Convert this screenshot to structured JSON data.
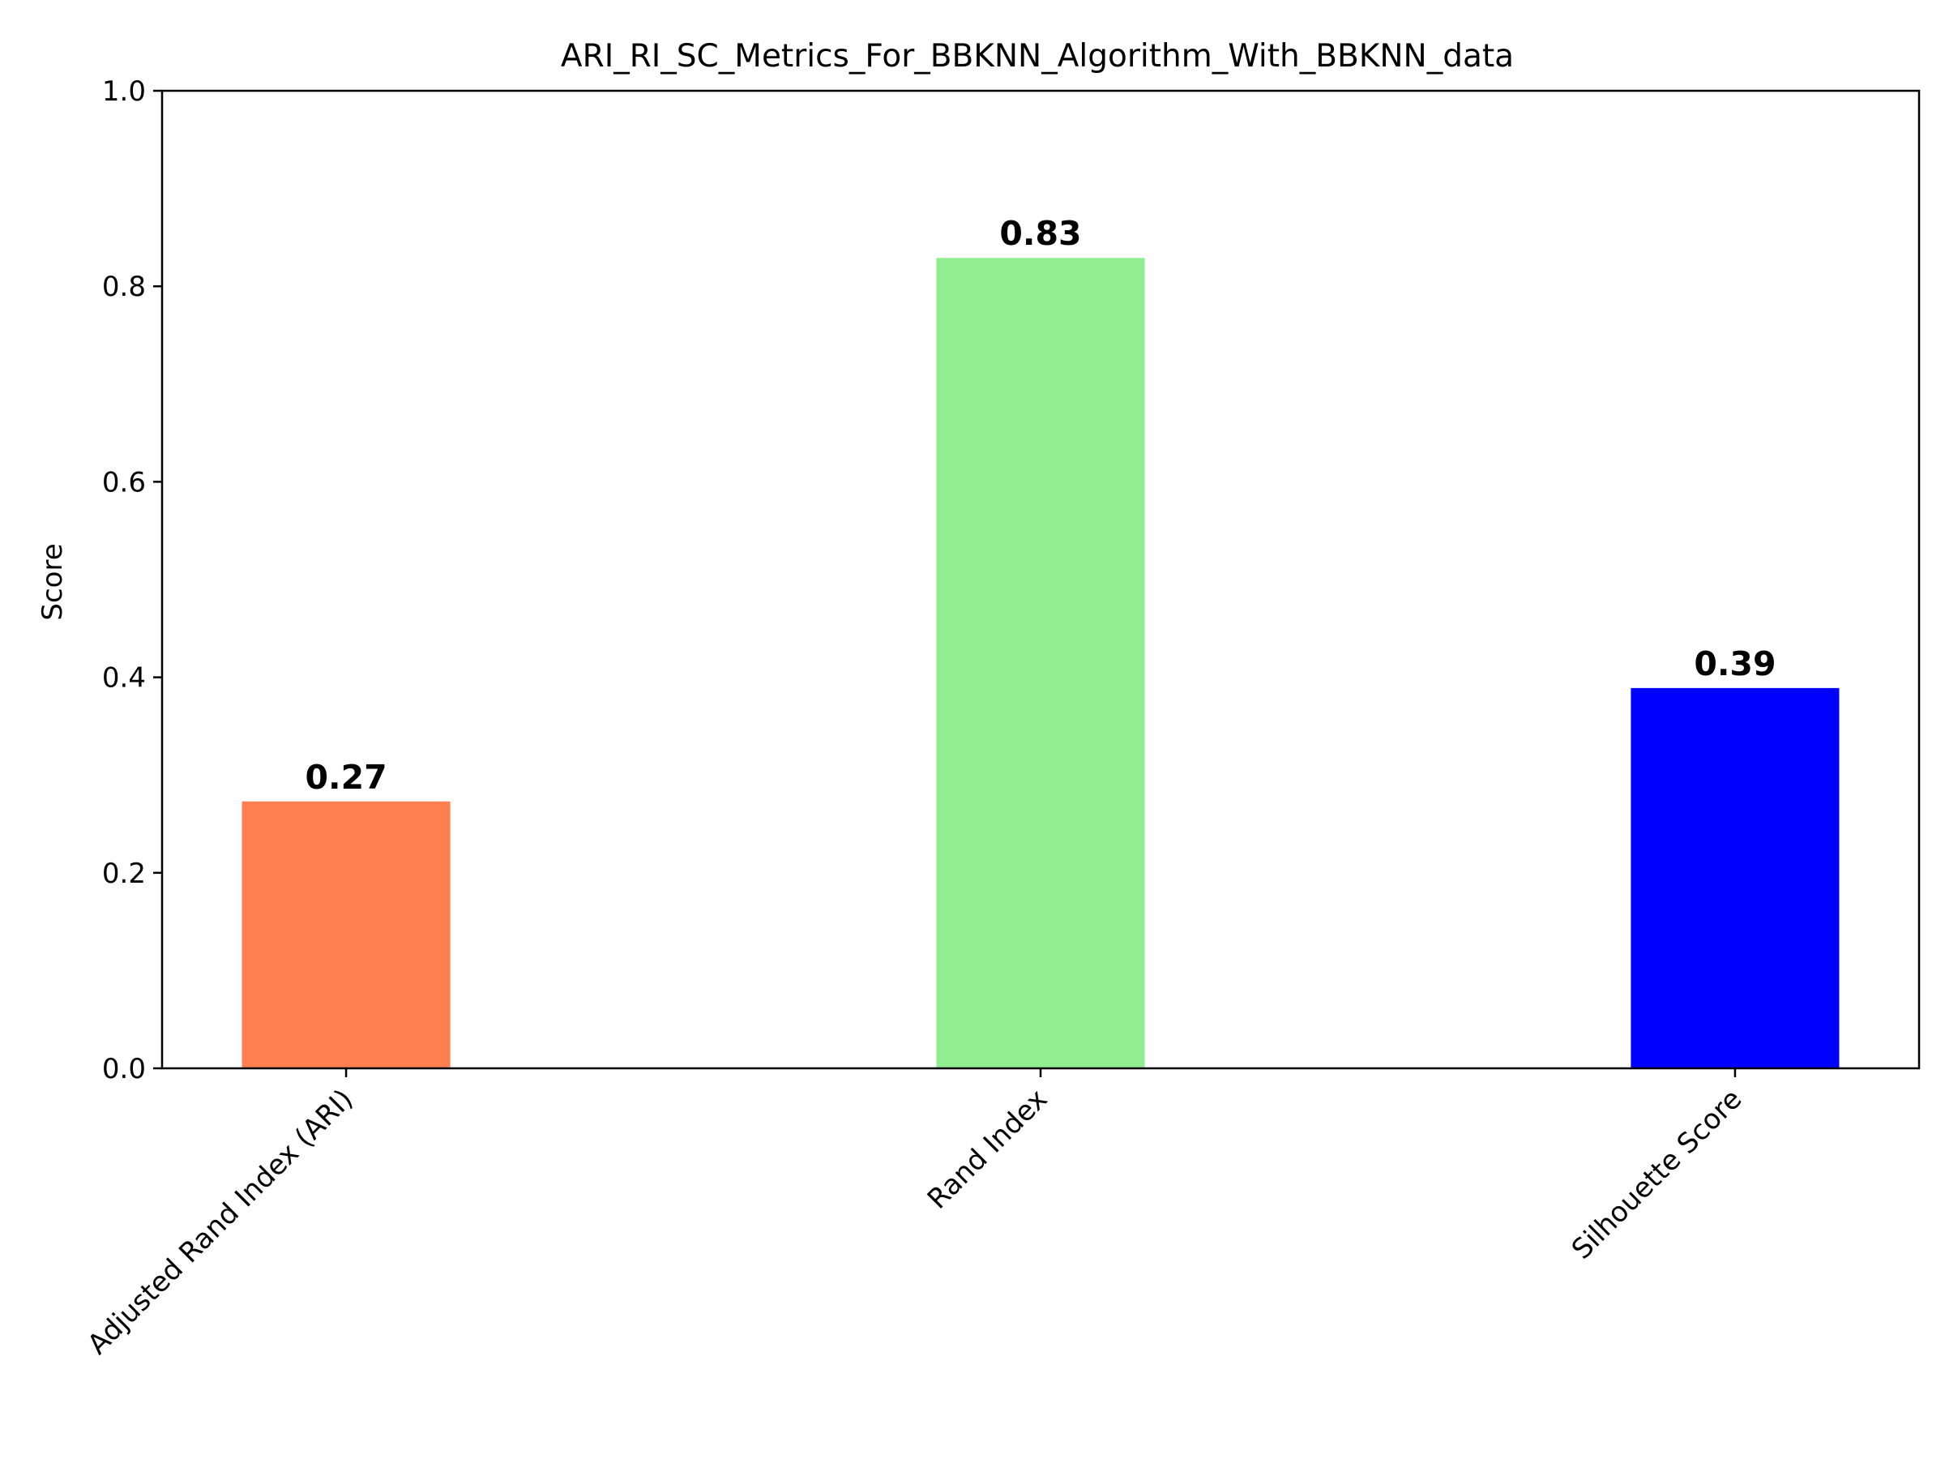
{
  "chart_data": {
    "type": "bar",
    "title": "ARI_RI_SC_Metrics_For_BBKNN_Algorithm_With_BBKNN_data",
    "xlabel": "",
    "ylabel": "Score",
    "categories": [
      "Adjusted Rand Index (ARI)",
      "Rand Index",
      "Silhouette Score"
    ],
    "values": [
      0.273,
      0.829,
      0.389
    ],
    "value_labels": [
      "0.27",
      "0.83",
      "0.39"
    ],
    "colors": [
      "#FF7F50",
      "#90EE90",
      "#0000FF"
    ],
    "ylim": [
      0,
      1.0
    ],
    "yticks": [
      "0.0",
      "0.2",
      "0.4",
      "0.6",
      "0.8",
      "1.0"
    ],
    "grid": false,
    "legend": "none"
  }
}
